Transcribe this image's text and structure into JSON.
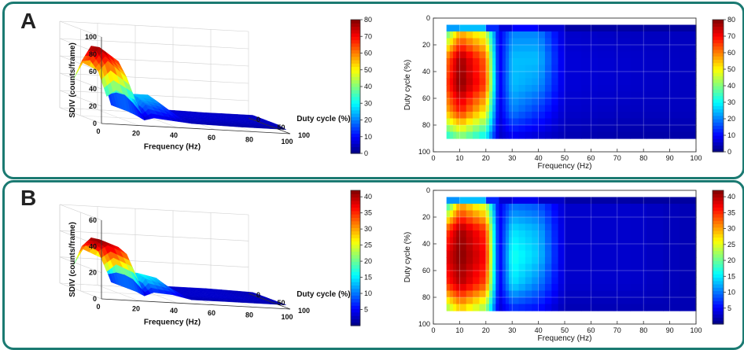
{
  "panels": [
    {
      "id": "A",
      "label": "A",
      "surface3d": {
        "zlabel": "SDIV (counts/frame)",
        "xlabel": "Frequency (Hz)",
        "ylabel": "Duty cycle (%)",
        "zticks": [
          "0",
          "20",
          "40",
          "60",
          "80",
          "100"
        ],
        "xticks": [
          "0",
          "20",
          "40",
          "60",
          "80",
          "100"
        ],
        "yticks": [
          "0",
          "50",
          "100"
        ],
        "colorbar_ticks": [
          "0",
          "10",
          "20",
          "30",
          "40",
          "50",
          "60",
          "70",
          "80"
        ]
      },
      "heatmap": {
        "xlabel": "Frequency (Hz)",
        "ylabel": "Duty cycle (%)",
        "xticks": [
          "0",
          "10",
          "20",
          "30",
          "40",
          "50",
          "60",
          "70",
          "80",
          "90",
          "100"
        ],
        "yticks": [
          "0",
          "20",
          "40",
          "60",
          "80",
          "100"
        ],
        "colorbar_ticks": [
          "0",
          "10",
          "20",
          "30",
          "40",
          "50",
          "60",
          "70",
          "80"
        ]
      }
    },
    {
      "id": "B",
      "label": "B",
      "surface3d": {
        "zlabel": "SDIV (counts/frame)",
        "xlabel": "Frequency (Hz)",
        "ylabel": "Duty cycle (%)",
        "zticks": [
          "0",
          "20",
          "40",
          "60"
        ],
        "xticks": [
          "0",
          "20",
          "40",
          "60",
          "80",
          "100"
        ],
        "yticks": [
          "0",
          "50",
          "100"
        ],
        "colorbar_ticks": [
          "5",
          "10",
          "15",
          "20",
          "25",
          "30",
          "35",
          "40"
        ]
      },
      "heatmap": {
        "xlabel": "Frequency (Hz)",
        "ylabel": "Duty cycle (%)",
        "xticks": [
          "0",
          "10",
          "20",
          "30",
          "40",
          "50",
          "60",
          "70",
          "80",
          "90",
          "100"
        ],
        "yticks": [
          "0",
          "20",
          "40",
          "60",
          "80",
          "100"
        ],
        "colorbar_ticks": [
          "5",
          "10",
          "15",
          "20",
          "25",
          "30",
          "35",
          "40"
        ]
      }
    }
  ],
  "chart_data": [
    {
      "type": "heatmap",
      "panel": "A",
      "xlabel": "Frequency (Hz)",
      "ylabel": "Duty cycle (%)",
      "zlabel": "SDIV (counts/frame)",
      "x": [
        5,
        10,
        20,
        25,
        30,
        40,
        50,
        75,
        100
      ],
      "y": [
        10,
        30,
        50,
        70,
        90
      ],
      "z": [
        [
          35,
          55,
          45,
          8,
          20,
          20,
          6,
          5,
          5
        ],
        [
          60,
          78,
          62,
          8,
          25,
          25,
          7,
          6,
          5
        ],
        [
          65,
          80,
          65,
          8,
          25,
          22,
          7,
          6,
          5
        ],
        [
          55,
          68,
          50,
          7,
          20,
          14,
          6,
          5,
          5
        ],
        [
          30,
          38,
          28,
          5,
          8,
          6,
          4,
          3,
          3
        ]
      ],
      "clim": [
        0,
        80
      ],
      "xlim": [
        0,
        100
      ],
      "ylim": [
        0,
        100
      ]
    },
    {
      "type": "heatmap",
      "panel": "B",
      "xlabel": "Frequency (Hz)",
      "ylabel": "Duty cycle (%)",
      "zlabel": "SDIV (counts/frame)",
      "x": [
        5,
        10,
        20,
        25,
        30,
        40,
        50,
        75,
        100
      ],
      "y": [
        10,
        30,
        50,
        70,
        90
      ],
      "z": [
        [
          15,
          28,
          22,
          4,
          9,
          8,
          3,
          3,
          2
        ],
        [
          32,
          39,
          33,
          4,
          14,
          12,
          3,
          3,
          2
        ],
        [
          36,
          40,
          35,
          4,
          16,
          13,
          3,
          3,
          2
        ],
        [
          33,
          38,
          32,
          4,
          14,
          10,
          3,
          3,
          2
        ],
        [
          20,
          26,
          20,
          3,
          6,
          5,
          2,
          2,
          2
        ]
      ],
      "clim": [
        0,
        40
      ],
      "xlim": [
        0,
        100
      ],
      "ylim": [
        0,
        100
      ]
    }
  ],
  "colors": {
    "border": "#1b7a72"
  }
}
